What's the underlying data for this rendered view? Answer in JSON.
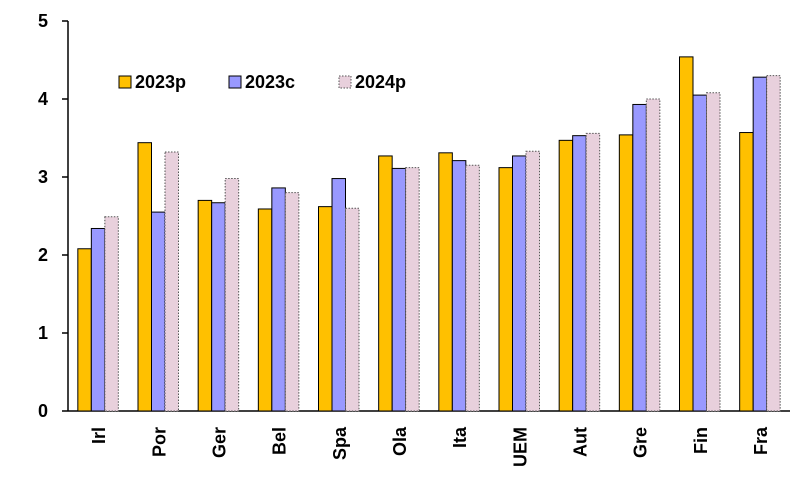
{
  "chart_data": {
    "type": "bar",
    "title": "",
    "xlabel": "",
    "ylabel": "",
    "ylim": [
      0,
      5
    ],
    "yticks": [
      0,
      1,
      2,
      3,
      4,
      5
    ],
    "grid": false,
    "legend_position": "top-left",
    "categories": [
      "Irl",
      "Por",
      "Ger",
      "Bel",
      "Spa",
      "Ola",
      "Ita",
      "UEM",
      "Aut",
      "Gre",
      "Fin",
      "Fra"
    ],
    "series": [
      {
        "name": "2023p",
        "color": "#FFC000",
        "values": [
          2.08,
          3.44,
          2.7,
          2.59,
          2.62,
          3.27,
          3.31,
          3.12,
          3.47,
          3.54,
          4.54,
          3.57
        ]
      },
      {
        "name": "2023c",
        "color": "#9999FF",
        "values": [
          2.34,
          2.55,
          2.67,
          2.86,
          2.98,
          3.11,
          3.21,
          3.27,
          3.53,
          3.93,
          4.05,
          4.28
        ]
      },
      {
        "name": "2024p",
        "color": "#E8D0DC",
        "values": [
          2.49,
          3.32,
          2.98,
          2.8,
          2.6,
          3.12,
          3.15,
          3.33,
          3.56,
          4.0,
          4.08,
          4.3
        ]
      }
    ]
  }
}
